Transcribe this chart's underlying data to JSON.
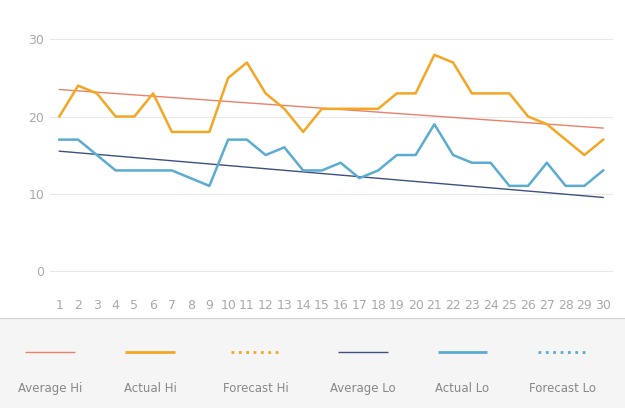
{
  "days": [
    1,
    2,
    3,
    4,
    5,
    6,
    7,
    8,
    9,
    10,
    11,
    12,
    13,
    14,
    15,
    16,
    17,
    18,
    19,
    20,
    21,
    22,
    23,
    24,
    25,
    26,
    27,
    28,
    29,
    30
  ],
  "actual_hi": [
    20,
    24,
    23,
    20,
    20,
    23,
    18,
    18,
    18,
    25,
    27,
    23,
    21,
    18,
    21,
    21,
    21,
    21,
    23,
    23,
    28,
    27,
    23,
    23,
    23,
    20,
    19,
    17,
    15,
    17
  ],
  "actual_lo": [
    17,
    17,
    15,
    13,
    13,
    13,
    13,
    12,
    11,
    17,
    17,
    15,
    16,
    13,
    13,
    14,
    12,
    13,
    15,
    15,
    19,
    15,
    14,
    14,
    11,
    11,
    14,
    11,
    11,
    13
  ],
  "avg_hi_start": 23.5,
  "avg_hi_end": 18.5,
  "avg_lo_start": 15.5,
  "avg_lo_end": 9.5,
  "color_actual_hi": "#f5a623",
  "color_actual_lo": "#5bacd1",
  "color_avg_hi": "#e8826a",
  "color_avg_lo": "#3d5080",
  "color_forecast_hi": "#f5a623",
  "color_forecast_lo": "#5bacd1",
  "background_color": "#ffffff",
  "legend_bg_color": "#f5f5f5",
  "plot_bg_color": "#ffffff",
  "ylim_bottom": -3,
  "ylim_top": 33,
  "yticks": [
    0,
    10,
    20,
    30
  ],
  "xticks": [
    1,
    2,
    3,
    4,
    5,
    6,
    7,
    8,
    9,
    10,
    11,
    12,
    13,
    14,
    15,
    16,
    17,
    18,
    19,
    20,
    21,
    22,
    23,
    24,
    25,
    26,
    27,
    28,
    29,
    30
  ],
  "legend_labels": [
    "Average Hi",
    "Actual Hi",
    "Forecast Hi",
    "Average Lo",
    "Actual Lo",
    "Forecast Lo"
  ],
  "grid_color": "#e8e8e8",
  "tick_color": "#aaaaaa",
  "tick_fontsize": 9
}
